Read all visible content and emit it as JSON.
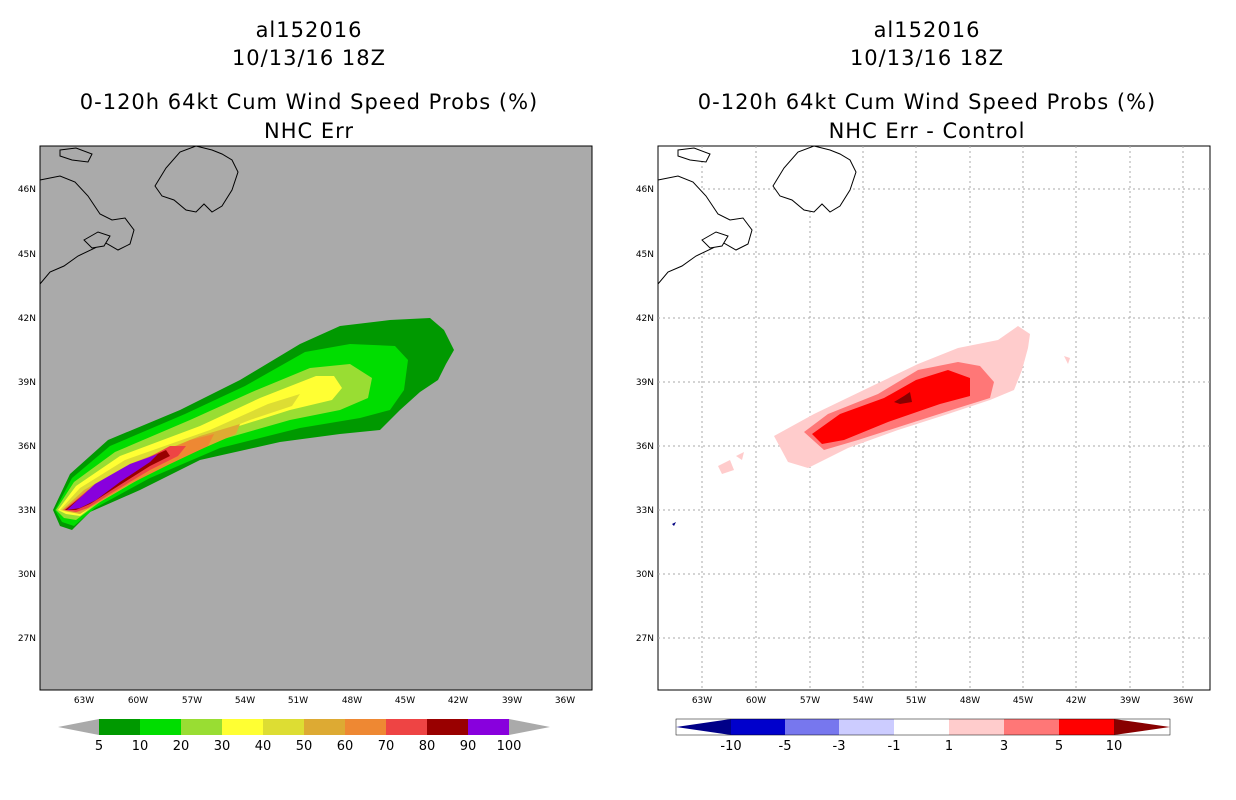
{
  "chart_data": [
    {
      "type": "heatmap",
      "panel": "left",
      "title_lines": [
        "al152016",
        "10/13/16 18Z",
        "0-120h 64kt Cum Wind Speed Probs (%)",
        "NHC Err"
      ],
      "x_ticks": [
        "63W",
        "60W",
        "57W",
        "54W",
        "51W",
        "48W",
        "45W",
        "42W",
        "39W",
        "36W"
      ],
      "y_ticks": [
        "46N",
        "45N",
        "42N",
        "39N",
        "36N",
        "33N",
        "30N",
        "27N"
      ],
      "colorbar": {
        "labels": [
          "5",
          "10",
          "20",
          "30",
          "40",
          "50",
          "60",
          "70",
          "80",
          "90",
          "100"
        ],
        "colors": [
          "#009900",
          "#00dd00",
          "#99dd33",
          "#ffff33",
          "#dddd33",
          "#ddaa33",
          "#ee8833",
          "#ee4444",
          "#990000",
          "#8800dd"
        ]
      },
      "background_color": "#aaaaaa"
    },
    {
      "type": "heatmap",
      "panel": "right",
      "title_lines": [
        "al152016",
        "10/13/16 18Z",
        "0-120h 64kt Cum Wind Speed Probs (%)",
        "NHC Err - Control"
      ],
      "x_ticks": [
        "63W",
        "60W",
        "57W",
        "54W",
        "51W",
        "48W",
        "45W",
        "42W",
        "39W",
        "36W"
      ],
      "y_ticks": [
        "46N",
        "45N",
        "42N",
        "39N",
        "36N",
        "33N",
        "30N",
        "27N"
      ],
      "colorbar": {
        "labels": [
          "-10",
          "-5",
          "-3",
          "-1",
          "1",
          "3",
          "5",
          "10"
        ],
        "colors": [
          "#0000cc",
          "#7777ee",
          "#ccccff",
          "#ffffff",
          "#ffcccc",
          "#ff7777",
          "#ff0000"
        ],
        "end_low": "#000088",
        "end_high": "#880000"
      },
      "background_color": "#ffffff"
    }
  ]
}
